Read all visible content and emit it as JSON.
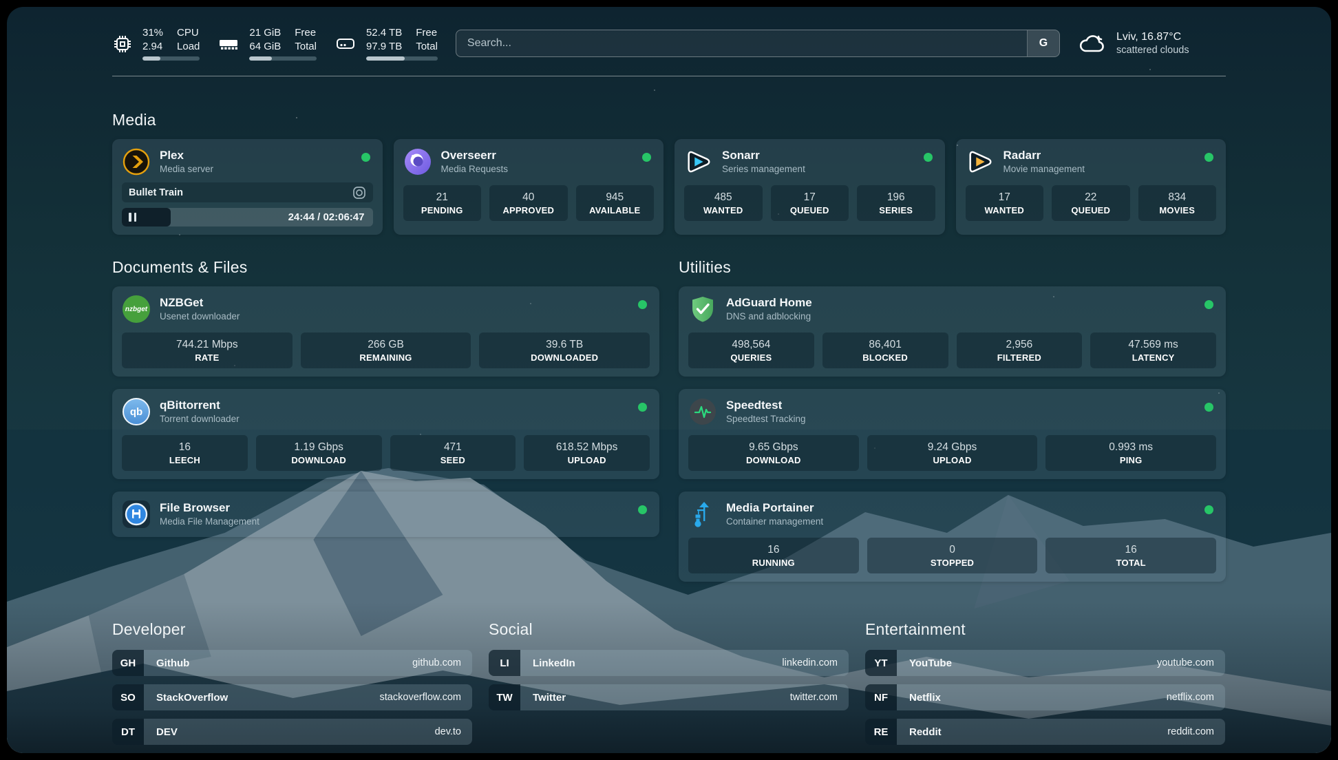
{
  "header": {
    "cpu": {
      "value1": "31%",
      "value2": "2.94",
      "label1": "CPU",
      "label2": "Load",
      "progress": 31
    },
    "memory": {
      "value1": "21 GiB",
      "value2": "64 GiB",
      "label1": "Free",
      "label2": "Total",
      "progress": 33
    },
    "disk": {
      "value1": "52.4 TB",
      "value2": "97.9 TB",
      "label1": "Free",
      "label2": "Total",
      "progress": 54
    },
    "search": {
      "placeholder": "Search...",
      "button": "G"
    },
    "weather": {
      "location": "Lviv, 16.87°C",
      "condition": "scattered clouds"
    }
  },
  "media": {
    "title": "Media",
    "plex": {
      "name": "Plex",
      "desc": "Media server",
      "now_playing": "Bullet Train",
      "time": "24:44 / 02:06:47",
      "progress": 19.5
    },
    "overseerr": {
      "name": "Overseerr",
      "desc": "Media Requests",
      "stats": [
        {
          "value": "21",
          "label": "PENDING"
        },
        {
          "value": "40",
          "label": "APPROVED"
        },
        {
          "value": "945",
          "label": "AVAILABLE"
        }
      ]
    },
    "sonarr": {
      "name": "Sonarr",
      "desc": "Series management",
      "stats": [
        {
          "value": "485",
          "label": "WANTED"
        },
        {
          "value": "17",
          "label": "QUEUED"
        },
        {
          "value": "196",
          "label": "SERIES"
        }
      ]
    },
    "radarr": {
      "name": "Radarr",
      "desc": "Movie management",
      "stats": [
        {
          "value": "17",
          "label": "WANTED"
        },
        {
          "value": "22",
          "label": "QUEUED"
        },
        {
          "value": "834",
          "label": "MOVIES"
        }
      ]
    }
  },
  "documents": {
    "title": "Documents & Files",
    "nzbget": {
      "name": "NZBGet",
      "desc": "Usenet downloader",
      "stats": [
        {
          "value": "744.21 Mbps",
          "label": "RATE"
        },
        {
          "value": "266 GB",
          "label": "REMAINING"
        },
        {
          "value": "39.6 TB",
          "label": "DOWNLOADED"
        }
      ]
    },
    "qbittorrent": {
      "name": "qBittorrent",
      "desc": "Torrent downloader",
      "stats": [
        {
          "value": "16",
          "label": "LEECH"
        },
        {
          "value": "1.19 Gbps",
          "label": "DOWNLOAD"
        },
        {
          "value": "471",
          "label": "SEED"
        },
        {
          "value": "618.52 Mbps",
          "label": "UPLOAD"
        }
      ]
    },
    "filebrowser": {
      "name": "File Browser",
      "desc": "Media File Management"
    }
  },
  "utilities": {
    "title": "Utilities",
    "adguard": {
      "name": "AdGuard Home",
      "desc": "DNS and adblocking",
      "stats": [
        {
          "value": "498,564",
          "label": "QUERIES"
        },
        {
          "value": "86,401",
          "label": "BLOCKED"
        },
        {
          "value": "2,956",
          "label": "FILTERED"
        },
        {
          "value": "47.569 ms",
          "label": "LATENCY"
        }
      ]
    },
    "speedtest": {
      "name": "Speedtest",
      "desc": "Speedtest Tracking",
      "stats": [
        {
          "value": "9.65 Gbps",
          "label": "DOWNLOAD"
        },
        {
          "value": "9.24 Gbps",
          "label": "UPLOAD"
        },
        {
          "value": "0.993 ms",
          "label": "PING"
        }
      ]
    },
    "portainer": {
      "name": "Media Portainer",
      "desc": "Container management",
      "stats": [
        {
          "value": "16",
          "label": "RUNNING"
        },
        {
          "value": "0",
          "label": "STOPPED"
        },
        {
          "value": "16",
          "label": "TOTAL"
        }
      ]
    }
  },
  "links": {
    "developer": {
      "title": "Developer",
      "items": [
        {
          "abbr": "GH",
          "name": "Github",
          "url": "github.com"
        },
        {
          "abbr": "SO",
          "name": "StackOverflow",
          "url": "stackoverflow.com"
        },
        {
          "abbr": "DT",
          "name": "DEV",
          "url": "dev.to"
        }
      ]
    },
    "social": {
      "title": "Social",
      "items": [
        {
          "abbr": "LI",
          "name": "LinkedIn",
          "url": "linkedin.com"
        },
        {
          "abbr": "TW",
          "name": "Twitter",
          "url": "twitter.com"
        }
      ]
    },
    "entertainment": {
      "title": "Entertainment",
      "items": [
        {
          "abbr": "YT",
          "name": "YouTube",
          "url": "youtube.com"
        },
        {
          "abbr": "NF",
          "name": "Netflix",
          "url": "netflix.com"
        },
        {
          "abbr": "RE",
          "name": "Reddit",
          "url": "reddit.com"
        }
      ]
    }
  },
  "icons": {
    "nzbget_text": "nzbget",
    "qbittorrent_text": "qb"
  },
  "colors": {
    "status_green": "#27c567",
    "plex": "#e5a00d",
    "sonarr": "#38c6f4",
    "radarr": "#f5b33c",
    "portainer": "#29a9eb"
  }
}
